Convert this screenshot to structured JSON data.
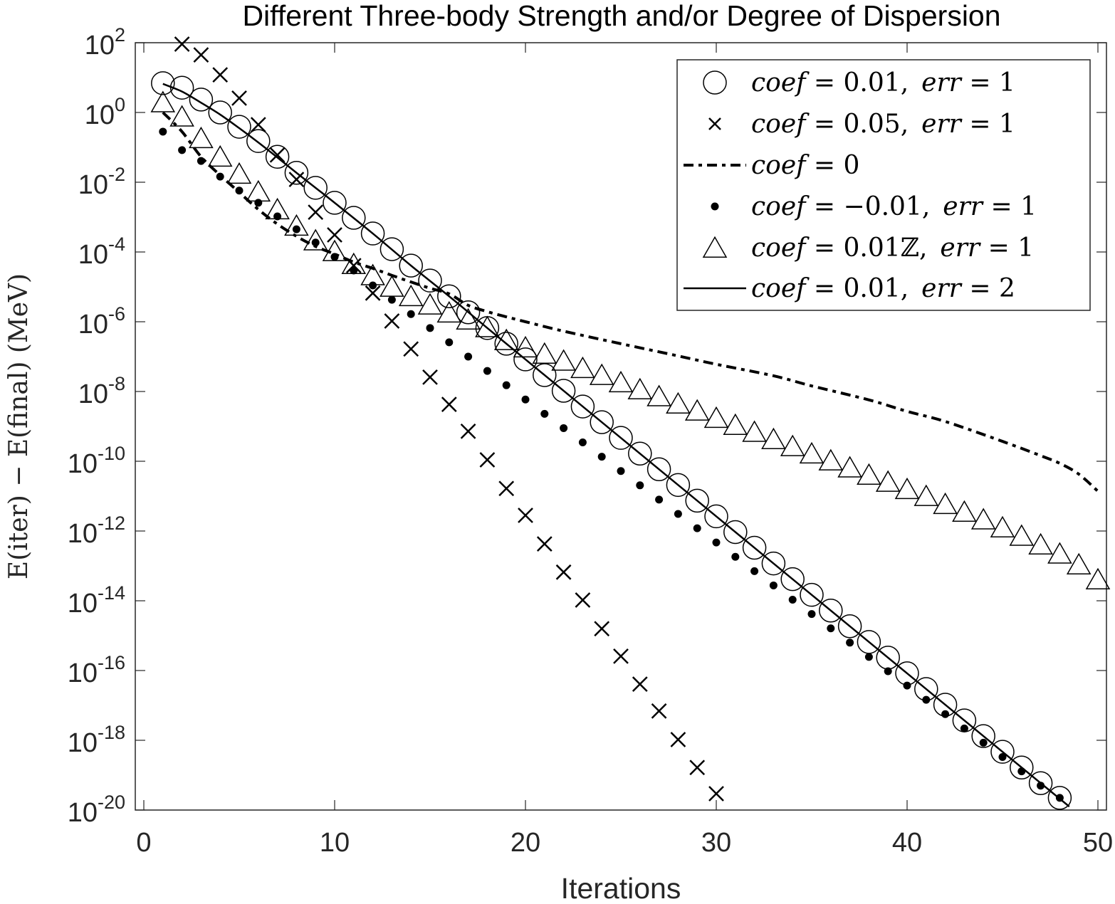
{
  "chart_data": {
    "type": "line",
    "title": "Different Three-body Strength and/or Degree of Dispersion",
    "xlabel": "Iterations",
    "ylabel": "E(iter) − E(final) (MeV)",
    "xlim": [
      0,
      50
    ],
    "ylim": [
      1e-20,
      100
    ],
    "yscale": "log",
    "grid": false,
    "legend_position": "top-right",
    "x_ticks": [
      0,
      10,
      20,
      30,
      40,
      50
    ],
    "x_tick_labels": [
      "0",
      "10",
      "20",
      "30",
      "40",
      "50"
    ],
    "y_ticks": [
      2,
      0,
      -2,
      -4,
      -6,
      -8,
      -10,
      -12,
      -14,
      -16,
      -18,
      -20
    ],
    "y_tick_base": "10",
    "y_tick_exponents": [
      "2",
      "0",
      "-2",
      "-4",
      "-6",
      "-8",
      "-10",
      "-12",
      "-14",
      "-16",
      "-18",
      "-20"
    ],
    "series": [
      {
        "name": "coef = 0.01, err = 1",
        "legend": {
          "lhs": "coef",
          "rhs": "0.01,",
          "extra_lhs": "err",
          "extra_rhs": "1"
        },
        "style": "circle",
        "x": [
          1,
          2,
          3,
          4,
          5,
          6,
          7,
          8,
          9,
          10,
          11,
          12,
          13,
          14,
          15,
          16,
          17,
          18,
          19,
          20,
          21,
          22,
          23,
          24,
          25,
          26,
          27,
          28,
          29,
          30,
          31,
          32,
          33,
          34,
          35,
          36,
          37,
          38,
          39,
          40,
          41,
          42,
          43,
          44,
          45,
          46,
          47,
          48
        ],
        "log10_y": [
          0.84,
          0.71,
          0.37,
          0.0,
          -0.41,
          -0.82,
          -1.27,
          -1.73,
          -2.16,
          -2.59,
          -3.02,
          -3.47,
          -3.92,
          -4.39,
          -4.82,
          -5.27,
          -5.73,
          -6.18,
          -6.63,
          -7.08,
          -7.53,
          -7.98,
          -8.43,
          -8.88,
          -9.33,
          -9.78,
          -10.23,
          -10.68,
          -11.13,
          -11.58,
          -12.03,
          -12.48,
          -12.93,
          -13.38,
          -13.83,
          -14.28,
          -14.73,
          -15.18,
          -15.63,
          -16.08,
          -16.53,
          -16.98,
          -17.43,
          -17.88,
          -18.33,
          -18.78,
          -19.23,
          -19.65
        ]
      },
      {
        "name": "coef = 0.05, err = 1",
        "legend": {
          "lhs": "coef",
          "rhs": "0.05,",
          "extra_lhs": "err",
          "extra_rhs": "1"
        },
        "style": "cross",
        "x": [
          2,
          3,
          4,
          5,
          6,
          7,
          8,
          9,
          10,
          11,
          12,
          13,
          14,
          15,
          16,
          17,
          18,
          19,
          20,
          21,
          22,
          23,
          24,
          25,
          26,
          27,
          28,
          29,
          30
        ],
        "log10_y": [
          1.96,
          1.65,
          1.08,
          0.41,
          -0.35,
          -1.22,
          -1.92,
          -2.86,
          -3.51,
          -4.39,
          -5.18,
          -5.98,
          -6.78,
          -7.59,
          -8.37,
          -9.14,
          -9.96,
          -10.78,
          -11.55,
          -12.37,
          -13.18,
          -13.98,
          -14.8,
          -15.59,
          -16.39,
          -17.16,
          -17.98,
          -18.78,
          -19.53
        ]
      },
      {
        "name": "coef = 0",
        "legend": {
          "lhs": "coef",
          "rhs": "0"
        },
        "style": "dashdot",
        "x": [
          1,
          2,
          3,
          4,
          5,
          6,
          7,
          8,
          9,
          10,
          11,
          12,
          13,
          14,
          15,
          16,
          17,
          18,
          19,
          20,
          22,
          25,
          28,
          30,
          33,
          35,
          38,
          40,
          42,
          45,
          47,
          48,
          49,
          50
        ],
        "log10_y": [
          0.0,
          -0.55,
          -1.27,
          -1.8,
          -2.29,
          -2.78,
          -3.2,
          -3.55,
          -3.84,
          -4.06,
          -4.29,
          -4.47,
          -4.67,
          -4.86,
          -5.04,
          -5.2,
          -5.53,
          -5.71,
          -5.86,
          -6.0,
          -6.27,
          -6.63,
          -6.98,
          -7.22,
          -7.55,
          -7.84,
          -8.24,
          -8.57,
          -8.86,
          -9.43,
          -9.84,
          -10.06,
          -10.37,
          -10.86
        ]
      },
      {
        "name": "coef = −0.01, err = 1",
        "legend": {
          "lhs": "coef",
          "rhs": "−0.01,",
          "extra_lhs": "err",
          "extra_rhs": "1"
        },
        "style": "dot",
        "x": [
          1,
          2,
          3,
          4,
          5,
          6,
          7,
          8,
          9,
          10,
          11,
          12,
          13,
          14,
          15,
          16,
          17,
          18,
          19,
          20,
          21,
          22,
          23,
          24,
          25,
          26,
          27,
          28,
          29,
          30,
          31,
          32,
          33,
          34,
          35,
          36,
          37,
          38,
          39,
          40,
          41,
          42,
          43,
          44,
          45,
          46,
          47,
          48
        ],
        "log10_y": [
          -0.55,
          -1.08,
          -1.39,
          -1.84,
          -2.24,
          -2.59,
          -2.98,
          -3.35,
          -3.73,
          -4.14,
          -4.53,
          -4.96,
          -5.37,
          -5.78,
          -6.18,
          -6.59,
          -7.0,
          -7.41,
          -7.82,
          -8.23,
          -8.64,
          -9.05,
          -9.46,
          -9.87,
          -10.28,
          -10.69,
          -11.1,
          -11.51,
          -11.92,
          -12.33,
          -12.74,
          -13.15,
          -13.56,
          -13.97,
          -14.38,
          -14.79,
          -15.2,
          -15.61,
          -16.02,
          -16.43,
          -16.84,
          -17.25,
          -17.66,
          -18.07,
          -18.48,
          -18.89,
          -19.3,
          -19.65
        ]
      },
      {
        "name": "coef = 0.01Z, err = 1",
        "legend": {
          "lhs": "coef",
          "rhs": "0.01ℤ,",
          "extra_lhs": "err",
          "extra_rhs": "1"
        },
        "style": "triangle",
        "x": [
          1,
          2,
          3,
          4,
          5,
          6,
          7,
          8,
          9,
          10,
          11,
          12,
          13,
          14,
          15,
          16,
          17,
          18,
          19,
          20,
          21,
          22,
          23,
          24,
          25,
          26,
          27,
          28,
          29,
          30,
          31,
          32,
          33,
          34,
          35,
          36,
          37,
          38,
          39,
          40,
          41,
          42,
          43,
          44,
          45,
          46,
          47,
          48,
          49,
          50
        ],
        "log10_y": [
          0.25,
          -0.16,
          -0.78,
          -1.31,
          -1.8,
          -2.31,
          -2.82,
          -3.29,
          -3.71,
          -4.02,
          -4.39,
          -4.71,
          -5.04,
          -5.31,
          -5.55,
          -5.78,
          -5.98,
          -6.2,
          -6.57,
          -6.78,
          -6.96,
          -7.16,
          -7.37,
          -7.57,
          -7.78,
          -7.98,
          -8.18,
          -8.39,
          -8.59,
          -8.8,
          -9.0,
          -9.2,
          -9.41,
          -9.61,
          -9.82,
          -10.02,
          -10.22,
          -10.43,
          -10.63,
          -10.84,
          -11.04,
          -11.27,
          -11.49,
          -11.71,
          -11.94,
          -12.18,
          -12.43,
          -12.69,
          -13.0,
          -13.43
        ]
      },
      {
        "name": "coef = 0.01, err = 2",
        "legend": {
          "lhs": "coef",
          "rhs": "0.01,",
          "extra_lhs": "err",
          "extra_rhs": "2"
        },
        "style": "solid",
        "x": [
          1,
          2,
          3,
          4,
          5,
          6,
          7,
          8,
          9,
          10,
          12,
          14,
          16,
          18,
          20,
          25,
          30,
          35,
          40,
          45,
          48.5
        ],
        "log10_y": [
          0.82,
          0.6,
          0.28,
          -0.06,
          -0.45,
          -0.86,
          -1.29,
          -1.73,
          -2.16,
          -2.59,
          -3.47,
          -4.39,
          -5.27,
          -6.18,
          -7.08,
          -9.33,
          -11.58,
          -13.83,
          -16.08,
          -18.33,
          -19.9
        ]
      }
    ]
  }
}
